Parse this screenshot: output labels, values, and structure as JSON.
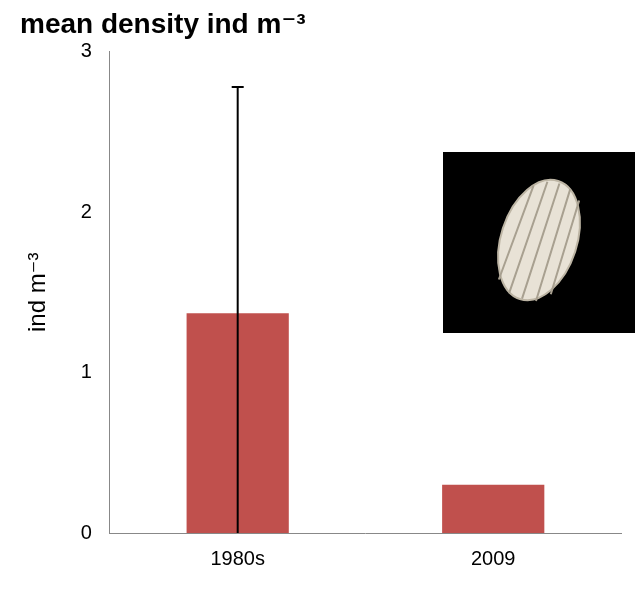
{
  "chart_data": {
    "type": "bar",
    "title": "mean density ind m⁻³",
    "y_label": "ind m⁻³",
    "categories": [
      "1980s",
      "2009"
    ],
    "values": [
      1.37,
      0.3
    ],
    "errors": [
      1.41,
      null
    ],
    "color": "#c0504d",
    "ylim": [
      0,
      3
    ],
    "yticks": [
      0,
      1,
      2,
      3
    ],
    "grid": false
  }
}
